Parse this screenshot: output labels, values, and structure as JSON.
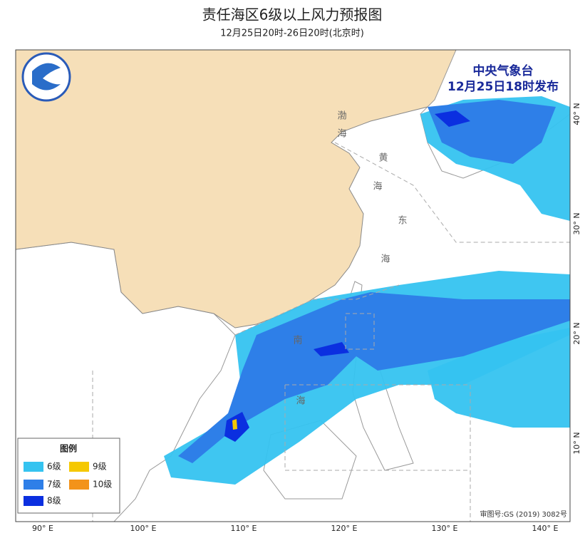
{
  "header": {
    "title": "责任海区6级以上风力预报图",
    "subtitle": "12月25日20时-26日20时(北京时)"
  },
  "issuer": {
    "name": "中央气象台",
    "time": "12月25日18时发布"
  },
  "legend": {
    "title": "图例",
    "items": [
      {
        "label": "6级",
        "color": "#35c3f0"
      },
      {
        "label": "7级",
        "color": "#2e7fe8"
      },
      {
        "label": "8级",
        "color": "#0b2fe0"
      },
      {
        "label": "9级",
        "color": "#f5c800"
      },
      {
        "label": "10级",
        "color": "#f3931a"
      }
    ]
  },
  "axes": {
    "longitude_labels": [
      "90° E",
      "100° E",
      "110° E",
      "120° E",
      "130° E",
      "140° E"
    ],
    "latitude_labels": [
      "10° N",
      "20° N",
      "30° N",
      "40° N"
    ]
  },
  "sea_labels": [
    "渤",
    "海",
    "黄",
    "海",
    "东",
    "海",
    "南",
    "海"
  ],
  "approval_number": "审图号:GS (2019) 3082号"
}
